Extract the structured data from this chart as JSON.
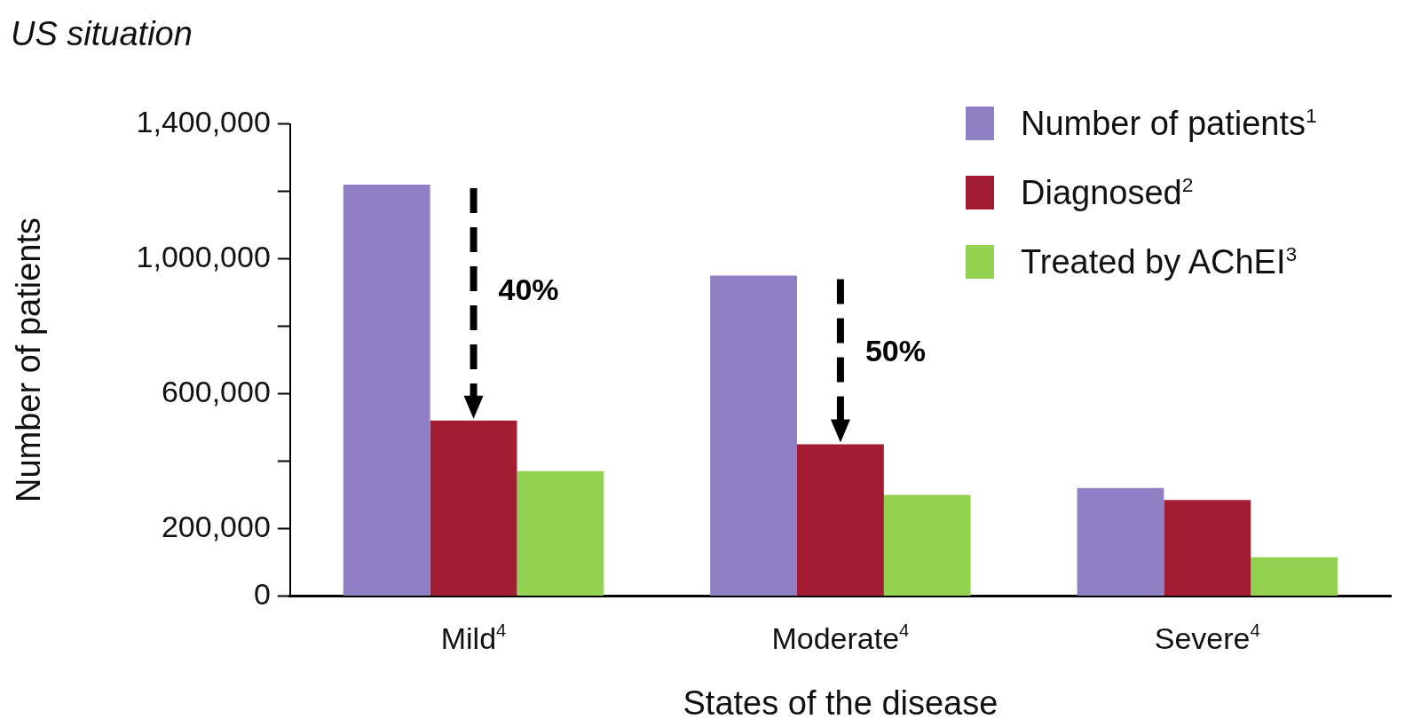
{
  "chart_data": {
    "type": "bar",
    "title": "US situation",
    "xlabel": "States of the disease",
    "ylabel": "Number of patients",
    "categories": [
      "Mild$^{4}$",
      "Moderate$^{4}$",
      "Severe$^{4}$"
    ],
    "series": [
      {
        "name": "Number of patients$^{1}$",
        "color": "#917fc6",
        "values": [
          1220000,
          950000,
          320000
        ]
      },
      {
        "name": "Diagnosed$^{2}$",
        "color": "#a21c32",
        "values": [
          520000,
          450000,
          285000
        ]
      },
      {
        "name": "Treated by AChEI$^{3}$",
        "color": "#93d150",
        "values": [
          370000,
          300000,
          115000
        ]
      }
    ],
    "ylim": [
      0,
      1400000
    ],
    "yticks": [
      0,
      {
        "value": 200000,
        "label": "200,000"
      },
      {
        "value": 400000,
        "label": null
      },
      {
        "value": 600000,
        "label": "600,000"
      },
      {
        "value": 800000,
        "label": null
      },
      {
        "value": 1000000,
        "label": "1,000,000"
      },
      {
        "value": 1200000,
        "label": null
      },
      {
        "value": 1400000,
        "label": "1,400,000"
      }
    ],
    "annotations": [
      "40%",
      "50%"
    ],
    "grid": false,
    "legend": "top right"
  }
}
